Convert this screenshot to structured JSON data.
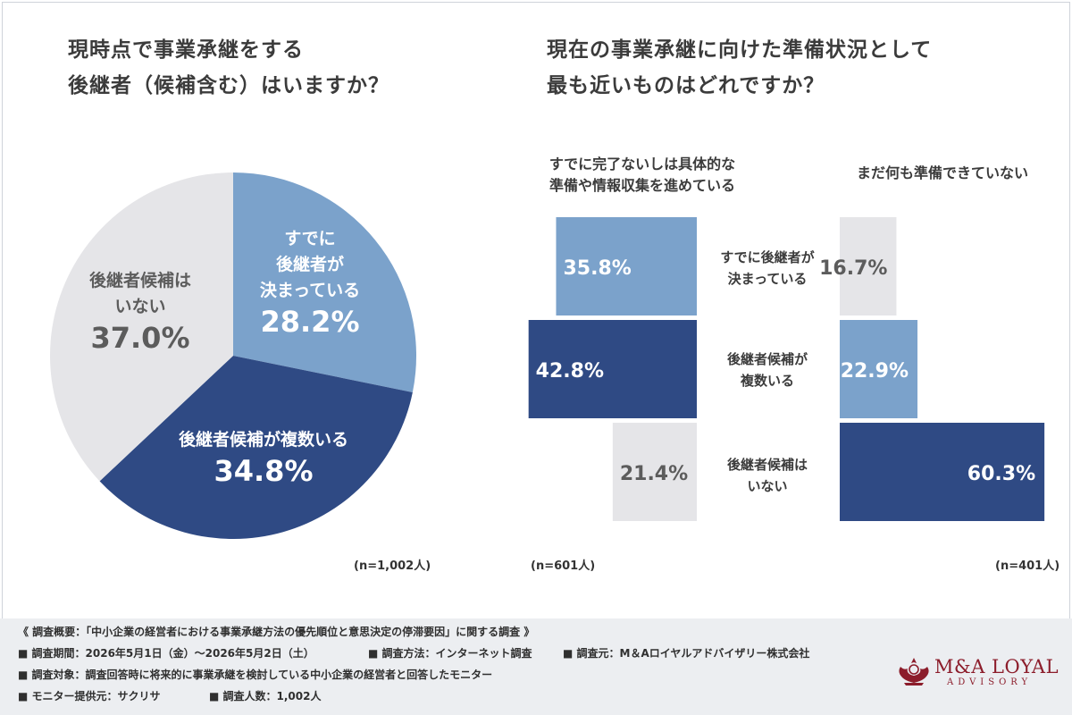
{
  "left_question": {
    "line1": "現時点で事業承継をする",
    "line2": "後継者（候補含む）はいますか？"
  },
  "right_question": {
    "line1": "現在の事業承継に向けた準備状況として",
    "line2": "最も近いものはどれですか？"
  },
  "pie": {
    "n_label": "(n=1,002人)",
    "slices": [
      {
        "label_lines": [
          "すでに",
          "後継者が",
          "決まっている"
        ],
        "value_label": "28.2%",
        "value": 28.2,
        "color": "#7ba2cb"
      },
      {
        "label_lines": [
          "後継者候補が複数いる"
        ],
        "value_label": "34.8%",
        "value": 34.8,
        "color": "#2f4a84"
      },
      {
        "label_lines": [
          "後継者候補は",
          "いない"
        ],
        "value_label": "37.0%",
        "value": 37.0,
        "color": "#e5e5e8"
      }
    ]
  },
  "bars": {
    "left_group": {
      "head_lines": [
        "すでに完了ないしは具体的な",
        "準備や情報収集を進めている"
      ],
      "n_label": "(n=601人)"
    },
    "right_group": {
      "head_lines": [
        "まだ何も準備できていない"
      ],
      "n_label": "(n=401人)"
    },
    "categories": [
      {
        "lines": [
          "すでに後継者が",
          "決まっている"
        ]
      },
      {
        "lines": [
          "後継者候補が",
          "複数いる"
        ]
      },
      {
        "lines": [
          "後継者候補は",
          "いない"
        ]
      }
    ]
  },
  "chart_data": [
    {
      "type": "pie",
      "title": "現時点で事業承継をする後継者（候補含む）はいますか？",
      "categories": [
        "すでに後継者が決まっている",
        "後継者候補が複数いる",
        "後継者候補はいない"
      ],
      "values": [
        28.2,
        34.8,
        37.0
      ],
      "colors": [
        "#7ba2cb",
        "#2f4a84",
        "#e5e5e8"
      ],
      "note": "(n=1,002人)"
    },
    {
      "type": "bar",
      "title": "現在の事業承継に向けた準備状況として最も近いものはどれですか？",
      "categories": [
        "すでに後継者が決まっている",
        "後継者候補が複数いる",
        "後継者候補はいない"
      ],
      "series": [
        {
          "name": "すでに完了ないしは具体的な準備や情報収集を進めている",
          "values": [
            35.8,
            42.8,
            21.4
          ],
          "value_labels": [
            "35.8%",
            "42.8%",
            "21.4%"
          ],
          "colors": [
            "#7ba2cb",
            "#2f4a84",
            "#e5e5e8"
          ],
          "n": "(n=601人)"
        },
        {
          "name": "まだ何も準備できていない",
          "values": [
            16.7,
            22.9,
            60.3
          ],
          "value_labels": [
            "16.7%",
            "22.9%",
            "60.3%"
          ],
          "colors": [
            "#e5e5e8",
            "#7ba2cb",
            "#2f4a84"
          ],
          "n": "(n=401人)"
        }
      ]
    }
  ],
  "footer": {
    "survey_title": "《 調査概要：「中小企業の経営者における事業承継方法の優先順位と意思決定の停滞要因」に関する調査 》",
    "period": "■ 調査期間：2026年5月1日（金）〜2026年5月2日（土）",
    "method": "■ 調査方法：インターネット調査",
    "source": "■ 調査元：M＆Aロイヤルアドバイザリー株式会社",
    "target": "■ 調査対象：調査回答時に将来的に事業承継を検討している中小企業の経営者と回答したモニター",
    "provider": "■ モニター提供元：サクリサ",
    "count": "■ 調査人数：1,002人"
  },
  "logo": {
    "name": "M&A LOYAL",
    "sub": "ADVISORY",
    "color": "#8c1d2b"
  }
}
